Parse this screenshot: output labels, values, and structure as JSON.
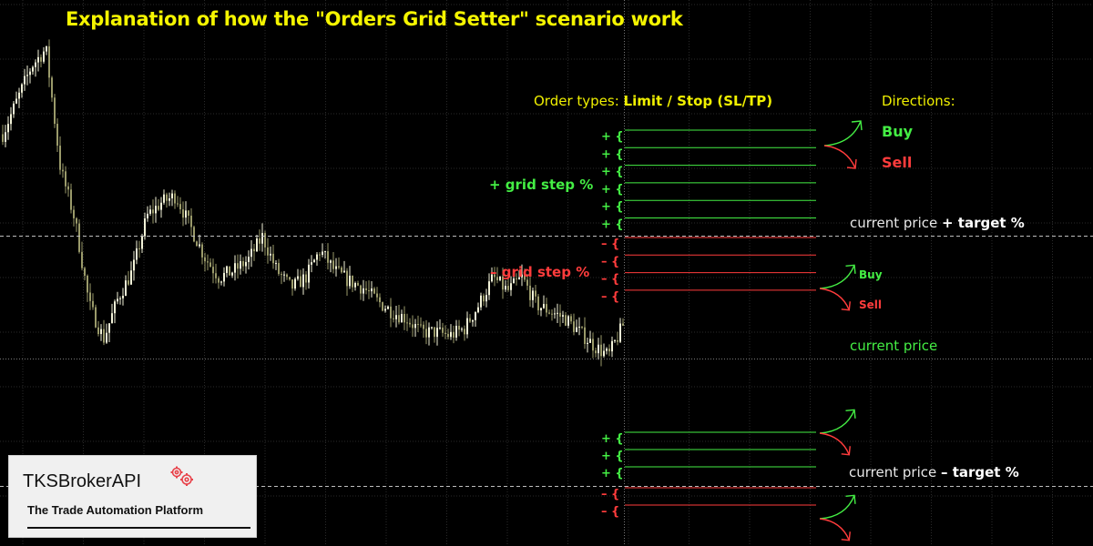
{
  "title": "Explanation of how the \"Orders Grid Setter\" scenario work",
  "order_types": {
    "prefix": "Order types: ",
    "value": "Limit / Stop (SL/TP)"
  },
  "directions": {
    "label": "Directions:",
    "buy": "Buy",
    "sell": "Sell"
  },
  "grid_labels": {
    "plus": "+ grid step %",
    "minus": "– grid step %"
  },
  "price_labels": {
    "plus_target_prefix": "current price ",
    "plus_target_strong": "+ target %",
    "current": "current price",
    "minus_target_prefix": "current price ",
    "minus_target_strong": "– target %"
  },
  "grid_markers": {
    "plus": "+ {",
    "minus": "– {"
  },
  "upper_grid": {
    "plus_count": 6,
    "minus_count": 4
  },
  "lower_grid": {
    "plus_count": 3,
    "minus_count": 2
  },
  "logo": {
    "name": "TKSBrokerAPI",
    "tagline": "The Trade Automation Platform"
  },
  "colors": {
    "title": "#f5f500",
    "plus": "#44ee44",
    "minus": "#ff3c3c",
    "bull_candle": "#f2f2d8",
    "bear_candle": "#9a9a6a",
    "grid": "#2a2a2a",
    "gear": "#e8434b"
  },
  "chart_data": {
    "type": "candlestick",
    "title": "",
    "xlabel": "",
    "ylabel": "",
    "grid": true,
    "close_profile": [
      0.7,
      0.8,
      0.9,
      0.95,
      0.6,
      0.45,
      0.2,
      0.1,
      0.22,
      0.3,
      0.46,
      0.5,
      0.52,
      0.43,
      0.34,
      0.28,
      0.3,
      0.33,
      0.4,
      0.3,
      0.25,
      0.28,
      0.36,
      0.3,
      0.27,
      0.25,
      0.21,
      0.18,
      0.16,
      0.12,
      0.12,
      0.11,
      0.13,
      0.2,
      0.28,
      0.24,
      0.28,
      0.2,
      0.18,
      0.16,
      0.12,
      0.08,
      0.05,
      0.14
    ],
    "profile_note_units": "relative price"
  }
}
